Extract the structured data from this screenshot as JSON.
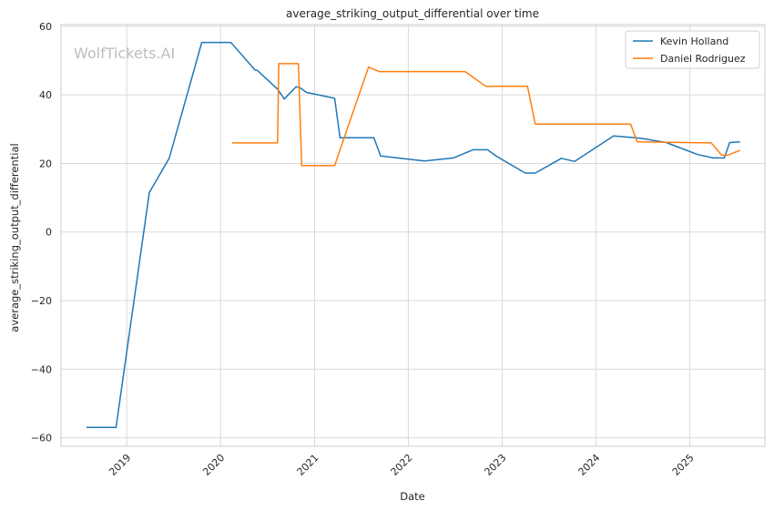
{
  "chart_data": {
    "type": "line",
    "title": "average_striking_output_differential over time",
    "xlabel": "Date",
    "ylabel": "average_striking_output_differential",
    "watermark": "WolfTickets.AI",
    "xlim": [
      "2018-04-20",
      "2025-10-20"
    ],
    "ylim": [
      -62.5,
      60.5
    ],
    "x_ticks": [
      "2019-01-01",
      "2020-01-01",
      "2021-01-01",
      "2022-01-01",
      "2023-01-01",
      "2024-01-01",
      "2025-01-01"
    ],
    "x_tick_labels": [
      "2019",
      "2020",
      "2021",
      "2022",
      "2023",
      "2024",
      "2025"
    ],
    "y_ticks": [
      -60,
      -40,
      -20,
      0,
      20,
      40,
      60
    ],
    "y_tick_labels": [
      "−60",
      "−40",
      "−20",
      "0",
      "20",
      "40",
      "60"
    ],
    "grid": true,
    "legend_position": "top-right",
    "series": [
      {
        "name": "Kevin Holland",
        "color": "#1f77b4",
        "points": [
          [
            "2018-07-28",
            -57
          ],
          [
            "2018-11-20",
            -57
          ],
          [
            "2019-03-30",
            11.5
          ],
          [
            "2019-06-15",
            21.5
          ],
          [
            "2019-10-20",
            55.3
          ],
          [
            "2020-02-10",
            55.3
          ],
          [
            "2020-05-15",
            47.2
          ],
          [
            "2020-05-22",
            47.2
          ],
          [
            "2020-08-10",
            41.7
          ],
          [
            "2020-09-05",
            38.8
          ],
          [
            "2020-10-20",
            42.3
          ],
          [
            "2020-11-01",
            42.3
          ],
          [
            "2020-12-01",
            40.7
          ],
          [
            "2021-03-20",
            39
          ],
          [
            "2021-04-10",
            27.5
          ],
          [
            "2021-08-20",
            27.5
          ],
          [
            "2021-09-15",
            22.2
          ],
          [
            "2022-03-05",
            20.7
          ],
          [
            "2022-06-25",
            21.6
          ],
          [
            "2022-09-10",
            24
          ],
          [
            "2022-11-05",
            24
          ],
          [
            "2022-12-10",
            22.1
          ],
          [
            "2023-04-01",
            17.2
          ],
          [
            "2023-05-10",
            17.2
          ],
          [
            "2023-08-20",
            21.5
          ],
          [
            "2023-10-10",
            20.6
          ],
          [
            "2024-03-10",
            28
          ],
          [
            "2024-06-20",
            27.4
          ],
          [
            "2024-10-01",
            26.1
          ],
          [
            "2025-02-01",
            22.6
          ],
          [
            "2025-04-01",
            21.6
          ],
          [
            "2025-05-15",
            21.6
          ],
          [
            "2025-06-05",
            26.1
          ],
          [
            "2025-07-15",
            26.3
          ]
        ]
      },
      {
        "name": "Daniel Rodriguez",
        "color": "#ff7f0e",
        "points": [
          [
            "2020-02-15",
            26
          ],
          [
            "2020-08-10",
            26
          ],
          [
            "2020-08-15",
            49.1
          ],
          [
            "2020-10-30",
            49.1
          ],
          [
            "2020-11-12",
            19.4
          ],
          [
            "2021-03-20",
            19.4
          ],
          [
            "2021-07-30",
            48.1
          ],
          [
            "2021-09-10",
            46.8
          ],
          [
            "2022-08-10",
            46.8
          ],
          [
            "2022-10-30",
            42.5
          ],
          [
            "2023-04-10",
            42.5
          ],
          [
            "2023-05-10",
            31.5
          ],
          [
            "2024-05-15",
            31.5
          ],
          [
            "2024-06-10",
            26.3
          ],
          [
            "2025-03-25",
            26
          ],
          [
            "2025-05-05",
            22.4
          ],
          [
            "2025-05-28",
            22.4
          ],
          [
            "2025-07-15",
            23.8
          ]
        ]
      }
    ]
  }
}
